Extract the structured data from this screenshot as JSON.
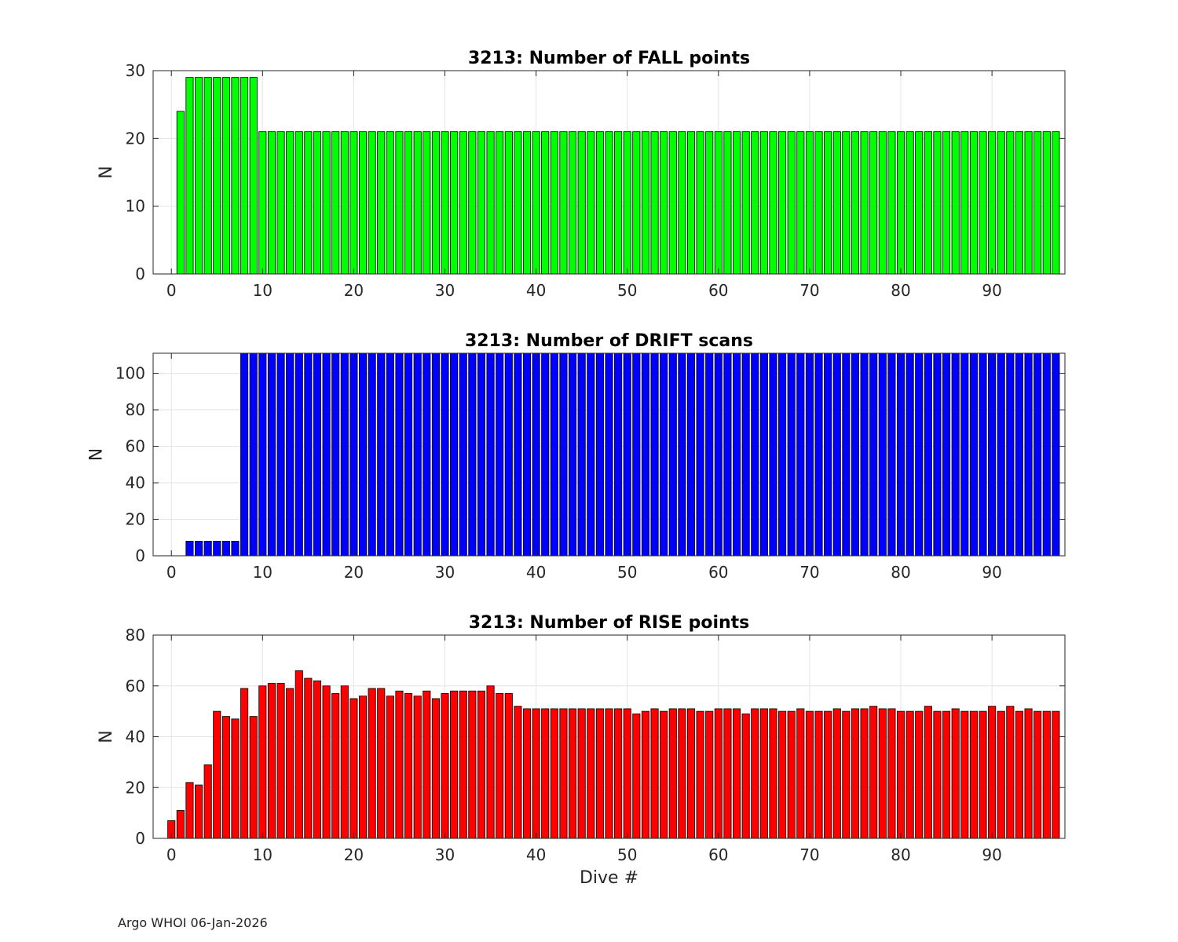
{
  "footer": "Argo WHOI 06-Jan-2026",
  "chart_data": [
    {
      "type": "bar",
      "title": "3213: Number of FALL points",
      "xlabel": "",
      "ylabel": "N",
      "color": "#00ff00",
      "grid": true,
      "xlim": [
        -2,
        98
      ],
      "ylim": [
        0,
        30
      ],
      "xticks": [
        0,
        10,
        20,
        30,
        40,
        50,
        60,
        70,
        80,
        90
      ],
      "yticks": [
        0,
        10,
        20,
        30
      ],
      "x": [
        0,
        1,
        2,
        3,
        4,
        5,
        6,
        7,
        8,
        9,
        10,
        11,
        12,
        13,
        14,
        15,
        16,
        17,
        18,
        19,
        20,
        21,
        22,
        23,
        24,
        25,
        26,
        27,
        28,
        29,
        30,
        31,
        32,
        33,
        34,
        35,
        36,
        37,
        38,
        39,
        40,
        41,
        42,
        43,
        44,
        45,
        46,
        47,
        48,
        49,
        50,
        51,
        52,
        53,
        54,
        55,
        56,
        57,
        58,
        59,
        60,
        61,
        62,
        63,
        64,
        65,
        66,
        67,
        68,
        69,
        70,
        71,
        72,
        73,
        74,
        75,
        76,
        77,
        78,
        79,
        80,
        81,
        82,
        83,
        84,
        85,
        86,
        87,
        88,
        89,
        90,
        91,
        92,
        93,
        94,
        95,
        96,
        97
      ],
      "values": [
        0,
        24,
        29,
        29,
        29,
        29,
        29,
        29,
        29,
        29,
        21,
        21,
        21,
        21,
        21,
        21,
        21,
        21,
        21,
        21,
        21,
        21,
        21,
        21,
        21,
        21,
        21,
        21,
        21,
        21,
        21,
        21,
        21,
        21,
        21,
        21,
        21,
        21,
        21,
        21,
        21,
        21,
        21,
        21,
        21,
        21,
        21,
        21,
        21,
        21,
        21,
        21,
        21,
        21,
        21,
        21,
        21,
        21,
        21,
        21,
        21,
        21,
        21,
        21,
        21,
        21,
        21,
        21,
        21,
        21,
        21,
        21,
        21,
        21,
        21,
        21,
        21,
        21,
        21,
        21,
        21,
        21,
        21,
        21,
        21,
        21,
        21,
        21,
        21,
        21,
        21,
        21,
        21,
        21,
        21,
        21,
        21,
        21
      ]
    },
    {
      "type": "bar",
      "title": "3213: Number of DRIFT scans",
      "xlabel": "",
      "ylabel": "N",
      "color": "#0000ff",
      "grid": true,
      "xlim": [
        -2,
        98
      ],
      "ylim": [
        0,
        111
      ],
      "xticks": [
        0,
        10,
        20,
        30,
        40,
        50,
        60,
        70,
        80,
        90
      ],
      "yticks": [
        0,
        20,
        40,
        60,
        80,
        100
      ],
      "x": [
        0,
        1,
        2,
        3,
        4,
        5,
        6,
        7,
        8,
        9,
        10,
        11,
        12,
        13,
        14,
        15,
        16,
        17,
        18,
        19,
        20,
        21,
        22,
        23,
        24,
        25,
        26,
        27,
        28,
        29,
        30,
        31,
        32,
        33,
        34,
        35,
        36,
        37,
        38,
        39,
        40,
        41,
        42,
        43,
        44,
        45,
        46,
        47,
        48,
        49,
        50,
        51,
        52,
        53,
        54,
        55,
        56,
        57,
        58,
        59,
        60,
        61,
        62,
        63,
        64,
        65,
        66,
        67,
        68,
        69,
        70,
        71,
        72,
        73,
        74,
        75,
        76,
        77,
        78,
        79,
        80,
        81,
        82,
        83,
        84,
        85,
        86,
        87,
        88,
        89,
        90,
        91,
        92,
        93,
        94,
        95,
        96,
        97
      ],
      "values": [
        0,
        0,
        8,
        8,
        8,
        8,
        8,
        8,
        111,
        111,
        111,
        111,
        111,
        111,
        111,
        111,
        111,
        111,
        111,
        111,
        111,
        111,
        111,
        111,
        111,
        111,
        111,
        111,
        111,
        111,
        111,
        111,
        111,
        111,
        111,
        111,
        111,
        111,
        111,
        111,
        111,
        111,
        111,
        111,
        111,
        111,
        111,
        111,
        111,
        111,
        111,
        111,
        111,
        111,
        111,
        111,
        111,
        111,
        111,
        111,
        111,
        111,
        111,
        111,
        111,
        111,
        111,
        111,
        111,
        111,
        111,
        111,
        111,
        111,
        111,
        111,
        111,
        111,
        111,
        111,
        111,
        111,
        111,
        111,
        111,
        111,
        111,
        111,
        111,
        111,
        111,
        111,
        111,
        111,
        111,
        111,
        111,
        111
      ]
    },
    {
      "type": "bar",
      "title": "3213: Number of RISE points",
      "xlabel": "Dive #",
      "ylabel": "N",
      "color": "#ff0000",
      "grid": true,
      "xlim": [
        -2,
        98
      ],
      "ylim": [
        0,
        80
      ],
      "xticks": [
        0,
        10,
        20,
        30,
        40,
        50,
        60,
        70,
        80,
        90
      ],
      "yticks": [
        0,
        20,
        40,
        60,
        80
      ],
      "x": [
        0,
        1,
        2,
        3,
        4,
        5,
        6,
        7,
        8,
        9,
        10,
        11,
        12,
        13,
        14,
        15,
        16,
        17,
        18,
        19,
        20,
        21,
        22,
        23,
        24,
        25,
        26,
        27,
        28,
        29,
        30,
        31,
        32,
        33,
        34,
        35,
        36,
        37,
        38,
        39,
        40,
        41,
        42,
        43,
        44,
        45,
        46,
        47,
        48,
        49,
        50,
        51,
        52,
        53,
        54,
        55,
        56,
        57,
        58,
        59,
        60,
        61,
        62,
        63,
        64,
        65,
        66,
        67,
        68,
        69,
        70,
        71,
        72,
        73,
        74,
        75,
        76,
        77,
        78,
        79,
        80,
        81,
        82,
        83,
        84,
        85,
        86,
        87,
        88,
        89,
        90,
        91,
        92,
        93,
        94,
        95,
        96,
        97
      ],
      "values": [
        7,
        11,
        22,
        21,
        29,
        50,
        48,
        47,
        59,
        48,
        60,
        61,
        61,
        59,
        66,
        63,
        62,
        60,
        57,
        60,
        55,
        56,
        59,
        59,
        56,
        58,
        57,
        56,
        58,
        55,
        57,
        58,
        58,
        58,
        58,
        60,
        57,
        57,
        52,
        51,
        51,
        51,
        51,
        51,
        51,
        51,
        51,
        51,
        51,
        51,
        51,
        49,
        50,
        51,
        50,
        51,
        51,
        51,
        50,
        50,
        51,
        51,
        51,
        49,
        51,
        51,
        51,
        50,
        50,
        51,
        50,
        50,
        50,
        51,
        50,
        51,
        51,
        52,
        51,
        51,
        50,
        50,
        50,
        52,
        50,
        50,
        51,
        50,
        50,
        50,
        52,
        50,
        52,
        50,
        51,
        50,
        50,
        50
      ]
    }
  ]
}
